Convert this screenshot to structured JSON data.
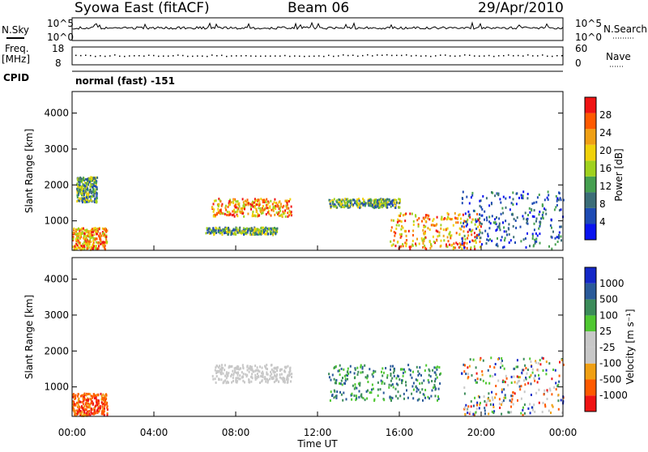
{
  "header": {
    "station": "Syowa East (fitACF)",
    "beam": "Beam 06",
    "date": "29/Apr/2010"
  },
  "top_panels": {
    "nsky_label": "N.Sky",
    "nsky_top": "10^5",
    "nsky_bottom": "10^0",
    "nsearch_label": "N.Search",
    "nsearch_top": "10^5",
    "nsearch_bottom": "10^0",
    "freq_label": "Freq.",
    "freq_unit": "[MHz]",
    "freq_top": "18",
    "freq_bottom": "8",
    "nave_label": "Nave",
    "nave_top": "60",
    "nave_bottom": "0",
    "cpid_label": "CPID",
    "cpid_value": "normal (fast) -151"
  },
  "colors": {
    "power": [
      "#0a14f0",
      "#1e4bb4",
      "#3c6e78",
      "#46a050",
      "#a0d21e",
      "#f0d20a",
      "#f0a014",
      "#ff5a00",
      "#f01414"
    ],
    "velocity": [
      "#f01414",
      "#ff5a00",
      "#f0a014",
      "#c8c8c8",
      "#c8c8c8",
      "#50c832",
      "#3c8c5a",
      "#2a5a9a",
      "#1428c8"
    ]
  },
  "chart_data": [
    {
      "type": "heatmap",
      "title": "",
      "xlabel": "",
      "ylabel": "Slant Range [km]",
      "x_ticks": [
        "00:00",
        "04:00",
        "08:00",
        "12:00",
        "16:00",
        "20:00",
        "00:00"
      ],
      "xlim_hours": [
        0,
        24
      ],
      "ylim": [
        180,
        4600
      ],
      "y_ticks": [
        1000,
        2000,
        3000,
        4000
      ],
      "colorbar": {
        "label": "Power [dB]",
        "ticks": [
          "4",
          "8",
          "12",
          "16",
          "20",
          "24",
          "28"
        ],
        "range": [
          0,
          30
        ]
      },
      "echo_regions": [
        {
          "t": [
            0.0,
            1.7
          ],
          "r": [
            180,
            800
          ],
          "level": "strong"
        },
        {
          "t": [
            0.2,
            1.2
          ],
          "r": [
            1500,
            2200
          ],
          "level": "medium"
        },
        {
          "t": [
            6.8,
            10.7
          ],
          "r": [
            1100,
            1600
          ],
          "level": "strong"
        },
        {
          "t": [
            6.5,
            10.0
          ],
          "r": [
            600,
            800
          ],
          "level": "medium"
        },
        {
          "t": [
            12.5,
            16.0
          ],
          "r": [
            1350,
            1600
          ],
          "level": "medium"
        },
        {
          "t": [
            15.5,
            20.0
          ],
          "r": [
            200,
            1200
          ],
          "level": "strong"
        },
        {
          "t": [
            19.0,
            24.0
          ],
          "r": [
            200,
            1800
          ],
          "level": "weak"
        }
      ]
    },
    {
      "type": "heatmap",
      "title": "",
      "xlabel": "Time UT",
      "ylabel": "Slant Range [km]",
      "x_ticks": [
        "00:00",
        "04:00",
        "08:00",
        "12:00",
        "16:00",
        "20:00",
        "00:00"
      ],
      "xlim_hours": [
        0,
        24
      ],
      "ylim": [
        180,
        4600
      ],
      "y_ticks": [
        1000,
        2000,
        3000,
        4000
      ],
      "colorbar": {
        "label": "Velocity [m s⁻¹]",
        "ticks": [
          "1000",
          "500",
          "100",
          "25",
          "-25",
          "-100",
          "-500",
          "-1000"
        ],
        "range": [
          -1200,
          1200
        ]
      },
      "echo_regions": [
        {
          "t": [
            0.0,
            1.7
          ],
          "r": [
            180,
            800
          ],
          "sign": "negative"
        },
        {
          "t": [
            6.8,
            10.7
          ],
          "r": [
            1100,
            1600
          ],
          "sign": "near-zero"
        },
        {
          "t": [
            12.5,
            18.0
          ],
          "r": [
            600,
            1600
          ],
          "sign": "positive"
        },
        {
          "t": [
            19.0,
            24.0
          ],
          "r": [
            200,
            1800
          ],
          "sign": "mixed"
        }
      ]
    }
  ]
}
